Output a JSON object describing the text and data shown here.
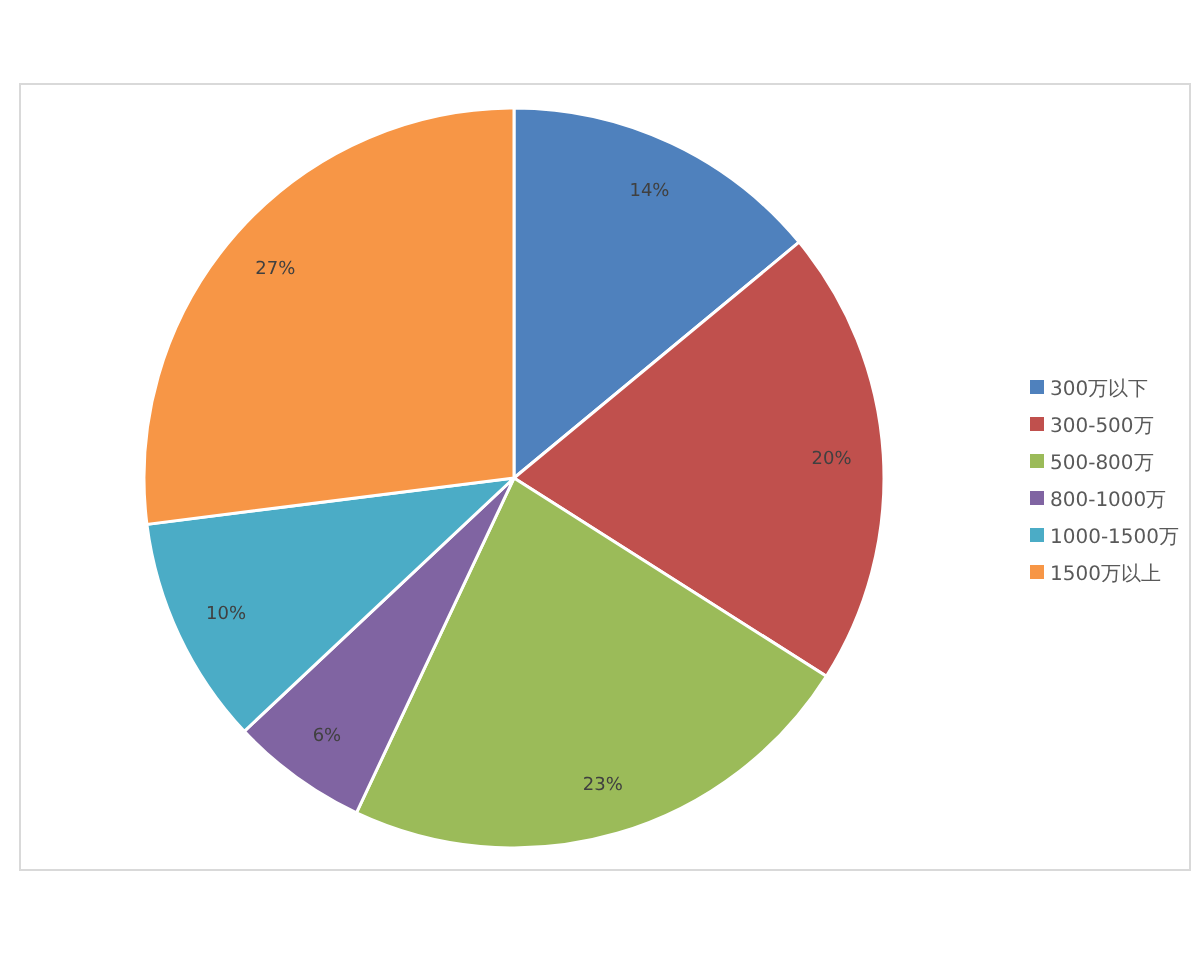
{
  "chart_data": {
    "type": "pie",
    "categories": [
      "300万以下",
      "300-500万",
      "500-800万",
      "800-1000万",
      "1000-1500万",
      "1500万以上"
    ],
    "values": [
      14,
      20,
      23,
      6,
      10,
      27
    ],
    "colors": [
      "#4f81bd",
      "#c0504d",
      "#9bbb59",
      "#8064a2",
      "#4bacc6",
      "#f79646"
    ],
    "value_labels": [
      "14%",
      "20%",
      "23%",
      "6%",
      "10%",
      "27%"
    ],
    "legend": "right"
  }
}
